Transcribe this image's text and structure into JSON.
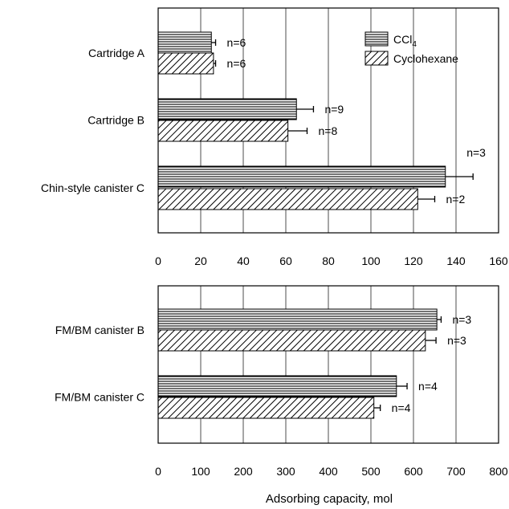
{
  "chart_data": [
    {
      "type": "bar",
      "orientation": "horizontal",
      "categories": [
        "Cartridge A",
        "Cartridge B",
        "Chin-style canister C"
      ],
      "series": [
        {
          "name": "CCl4",
          "pattern": "horizontal-lines",
          "values": [
            25,
            65,
            135
          ],
          "errors": [
            2,
            8,
            13
          ],
          "n_labels": [
            "n=6",
            "n=9",
            "n=3"
          ]
        },
        {
          "name": "Cyclohexane",
          "pattern": "diagonal-hatch",
          "values": [
            26,
            61,
            122
          ],
          "errors": [
            1,
            9,
            8
          ],
          "n_labels": [
            "n=6",
            "n=8",
            "n=2"
          ]
        }
      ],
      "xlim": [
        0,
        160
      ],
      "xticks": [
        "0",
        "20",
        "40",
        "60",
        "80",
        "100",
        "120",
        "140",
        "160"
      ],
      "grid": "vertical",
      "legend_position": "top-right"
    },
    {
      "type": "bar",
      "orientation": "horizontal",
      "categories": [
        "FM/BM canister B",
        "FM/BM canister C"
      ],
      "series": [
        {
          "name": "CCl4",
          "pattern": "horizontal-lines",
          "values": [
            655,
            560
          ],
          "errors": [
            10,
            25
          ],
          "n_labels": [
            "n=3",
            "n=4"
          ]
        },
        {
          "name": "Cyclohexane",
          "pattern": "diagonal-hatch",
          "values": [
            628,
            507
          ],
          "errors": [
            25,
            15
          ],
          "n_labels": [
            "n=3",
            "n=4"
          ]
        }
      ],
      "xlim": [
        0,
        800
      ],
      "xticks": [
        "0",
        "100",
        "200",
        "300",
        "400",
        "500",
        "600",
        "700",
        "800"
      ],
      "grid": "vertical",
      "xlabel": "Adsorbing capacity, mol"
    }
  ],
  "legend": {
    "ccl4": {
      "prefix": "CCl",
      "subscript": "4"
    },
    "cyclohexane": "Cyclohexane"
  }
}
